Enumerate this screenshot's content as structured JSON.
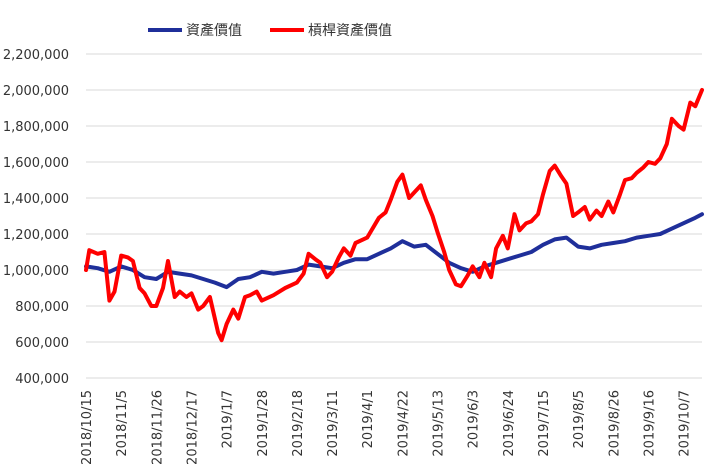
{
  "chart_data": {
    "type": "line",
    "title": "",
    "xlabel": "",
    "ylabel": "",
    "ylim": [
      400000,
      2200000
    ],
    "yticks": [
      400000,
      600000,
      800000,
      1000000,
      1200000,
      1400000,
      1600000,
      1800000,
      2000000,
      2200000
    ],
    "ytick_labels": [
      "400,000",
      "600,000",
      "800,000",
      "1,000,000",
      "1,200,000",
      "1,400,000",
      "1,600,000",
      "1,800,000",
      "2,000,000",
      "2,200,000"
    ],
    "x_start": "2018/10/15",
    "x_end": "2019/10/18",
    "xtick_labels": [
      "2018/10/15",
      "2018/11/5",
      "2018/11/26",
      "2018/12/17",
      "2019/1/7",
      "2019/1/28",
      "2019/2/18",
      "2019/3/11",
      "2019/4/1",
      "2019/4/22",
      "2019/5/13",
      "2019/6/3",
      "2019/6/24",
      "2019/7/15",
      "2019/8/5",
      "2019/8/26",
      "2019/9/16",
      "2019/10/7"
    ],
    "grid": true,
    "legend_position": "top",
    "series": [
      {
        "name": "資產價值",
        "color": "#1f2f9a",
        "points": [
          [
            "2018/10/15",
            1020000
          ],
          [
            "2018/10/22",
            1010000
          ],
          [
            "2018/10/29",
            990000
          ],
          [
            "2018/11/5",
            1020000
          ],
          [
            "2018/11/12",
            1000000
          ],
          [
            "2018/11/19",
            960000
          ],
          [
            "2018/11/26",
            950000
          ],
          [
            "2018/12/3",
            990000
          ],
          [
            "2018/12/10",
            980000
          ],
          [
            "2018/12/17",
            970000
          ],
          [
            "2018/12/24",
            950000
          ],
          [
            "2018/12/31",
            930000
          ],
          [
            "2019/1/7",
            905000
          ],
          [
            "2019/1/14",
            950000
          ],
          [
            "2019/1/21",
            960000
          ],
          [
            "2019/1/28",
            990000
          ],
          [
            "2019/2/4",
            980000
          ],
          [
            "2019/2/11",
            990000
          ],
          [
            "2019/2/18",
            1000000
          ],
          [
            "2019/2/25",
            1030000
          ],
          [
            "2019/3/4",
            1020000
          ],
          [
            "2019/3/11",
            1010000
          ],
          [
            "2019/3/18",
            1040000
          ],
          [
            "2019/3/25",
            1060000
          ],
          [
            "2019/4/1",
            1060000
          ],
          [
            "2019/4/8",
            1090000
          ],
          [
            "2019/4/15",
            1120000
          ],
          [
            "2019/4/22",
            1160000
          ],
          [
            "2019/4/29",
            1130000
          ],
          [
            "2019/5/6",
            1140000
          ],
          [
            "2019/5/13",
            1090000
          ],
          [
            "2019/5/20",
            1040000
          ],
          [
            "2019/5/27",
            1010000
          ],
          [
            "2019/6/3",
            990000
          ],
          [
            "2019/6/10",
            1020000
          ],
          [
            "2019/6/17",
            1040000
          ],
          [
            "2019/6/24",
            1060000
          ],
          [
            "2019/7/1",
            1080000
          ],
          [
            "2019/7/8",
            1100000
          ],
          [
            "2019/7/15",
            1140000
          ],
          [
            "2019/7/22",
            1170000
          ],
          [
            "2019/7/29",
            1180000
          ],
          [
            "2019/8/5",
            1130000
          ],
          [
            "2019/8/12",
            1120000
          ],
          [
            "2019/8/19",
            1140000
          ],
          [
            "2019/8/26",
            1150000
          ],
          [
            "2019/9/2",
            1160000
          ],
          [
            "2019/9/9",
            1180000
          ],
          [
            "2019/9/16",
            1190000
          ],
          [
            "2019/9/23",
            1200000
          ],
          [
            "2019/9/30",
            1230000
          ],
          [
            "2019/10/7",
            1260000
          ],
          [
            "2019/10/14",
            1290000
          ],
          [
            "2019/10/18",
            1310000
          ]
        ]
      },
      {
        "name": "槓桿資產價值",
        "color": "#ff0000",
        "points": [
          [
            "2018/10/15",
            1000000
          ],
          [
            "2018/10/17",
            1110000
          ],
          [
            "2018/10/22",
            1090000
          ],
          [
            "2018/10/26",
            1100000
          ],
          [
            "2018/10/29",
            830000
          ],
          [
            "2018/11/1",
            880000
          ],
          [
            "2018/11/5",
            1080000
          ],
          [
            "2018/11/9",
            1070000
          ],
          [
            "2018/11/12",
            1050000
          ],
          [
            "2018/11/16",
            900000
          ],
          [
            "2018/11/19",
            870000
          ],
          [
            "2018/11/23",
            800000
          ],
          [
            "2018/11/26",
            800000
          ],
          [
            "2018/11/30",
            900000
          ],
          [
            "2018/12/3",
            1050000
          ],
          [
            "2018/12/7",
            850000
          ],
          [
            "2018/12/10",
            880000
          ],
          [
            "2018/12/14",
            850000
          ],
          [
            "2018/12/17",
            870000
          ],
          [
            "2018/12/21",
            780000
          ],
          [
            "2018/12/24",
            800000
          ],
          [
            "2018/12/28",
            850000
          ],
          [
            "2019/1/2",
            650000
          ],
          [
            "2019/1/4",
            610000
          ],
          [
            "2019/1/7",
            700000
          ],
          [
            "2019/1/11",
            780000
          ],
          [
            "2019/1/14",
            730000
          ],
          [
            "2019/1/18",
            850000
          ],
          [
            "2019/1/21",
            860000
          ],
          [
            "2019/1/25",
            880000
          ],
          [
            "2019/1/28",
            830000
          ],
          [
            "2019/2/4",
            860000
          ],
          [
            "2019/2/11",
            900000
          ],
          [
            "2019/2/18",
            930000
          ],
          [
            "2019/2/22",
            980000
          ],
          [
            "2019/2/25",
            1090000
          ],
          [
            "2019/3/1",
            1060000
          ],
          [
            "2019/3/4",
            1040000
          ],
          [
            "2019/3/8",
            960000
          ],
          [
            "2019/3/11",
            990000
          ],
          [
            "2019/3/15",
            1070000
          ],
          [
            "2019/3/18",
            1120000
          ],
          [
            "2019/3/22",
            1080000
          ],
          [
            "2019/3/25",
            1150000
          ],
          [
            "2019/4/1",
            1180000
          ],
          [
            "2019/4/8",
            1290000
          ],
          [
            "2019/4/12",
            1320000
          ],
          [
            "2019/4/15",
            1390000
          ],
          [
            "2019/4/19",
            1490000
          ],
          [
            "2019/4/22",
            1530000
          ],
          [
            "2019/4/26",
            1400000
          ],
          [
            "2019/4/29",
            1430000
          ],
          [
            "2019/5/3",
            1470000
          ],
          [
            "2019/5/6",
            1390000
          ],
          [
            "2019/5/10",
            1300000
          ],
          [
            "2019/5/13",
            1210000
          ],
          [
            "2019/5/17",
            1100000
          ],
          [
            "2019/5/20",
            1000000
          ],
          [
            "2019/5/24",
            920000
          ],
          [
            "2019/5/27",
            910000
          ],
          [
            "2019/5/31",
            970000
          ],
          [
            "2019/6/3",
            1020000
          ],
          [
            "2019/6/7",
            960000
          ],
          [
            "2019/6/10",
            1040000
          ],
          [
            "2019/6/14",
            960000
          ],
          [
            "2019/6/17",
            1120000
          ],
          [
            "2019/6/21",
            1190000
          ],
          [
            "2019/6/24",
            1120000
          ],
          [
            "2019/6/28",
            1310000
          ],
          [
            "2019/7/1",
            1220000
          ],
          [
            "2019/7/5",
            1260000
          ],
          [
            "2019/7/8",
            1270000
          ],
          [
            "2019/7/12",
            1310000
          ],
          [
            "2019/7/15",
            1420000
          ],
          [
            "2019/7/19",
            1550000
          ],
          [
            "2019/7/22",
            1580000
          ],
          [
            "2019/7/26",
            1520000
          ],
          [
            "2019/7/29",
            1480000
          ],
          [
            "2019/8/2",
            1300000
          ],
          [
            "2019/8/5",
            1320000
          ],
          [
            "2019/8/9",
            1350000
          ],
          [
            "2019/8/12",
            1280000
          ],
          [
            "2019/8/16",
            1330000
          ],
          [
            "2019/8/19",
            1300000
          ],
          [
            "2019/8/23",
            1380000
          ],
          [
            "2019/8/26",
            1320000
          ],
          [
            "2019/8/30",
            1420000
          ],
          [
            "2019/9/2",
            1500000
          ],
          [
            "2019/9/6",
            1510000
          ],
          [
            "2019/9/9",
            1540000
          ],
          [
            "2019/9/13",
            1570000
          ],
          [
            "2019/9/16",
            1600000
          ],
          [
            "2019/9/20",
            1590000
          ],
          [
            "2019/9/23",
            1620000
          ],
          [
            "2019/9/27",
            1700000
          ],
          [
            "2019/9/30",
            1840000
          ],
          [
            "2019/10/4",
            1800000
          ],
          [
            "2019/10/7",
            1780000
          ],
          [
            "2019/10/11",
            1930000
          ],
          [
            "2019/10/14",
            1910000
          ],
          [
            "2019/10/18",
            2000000
          ]
        ]
      }
    ]
  }
}
